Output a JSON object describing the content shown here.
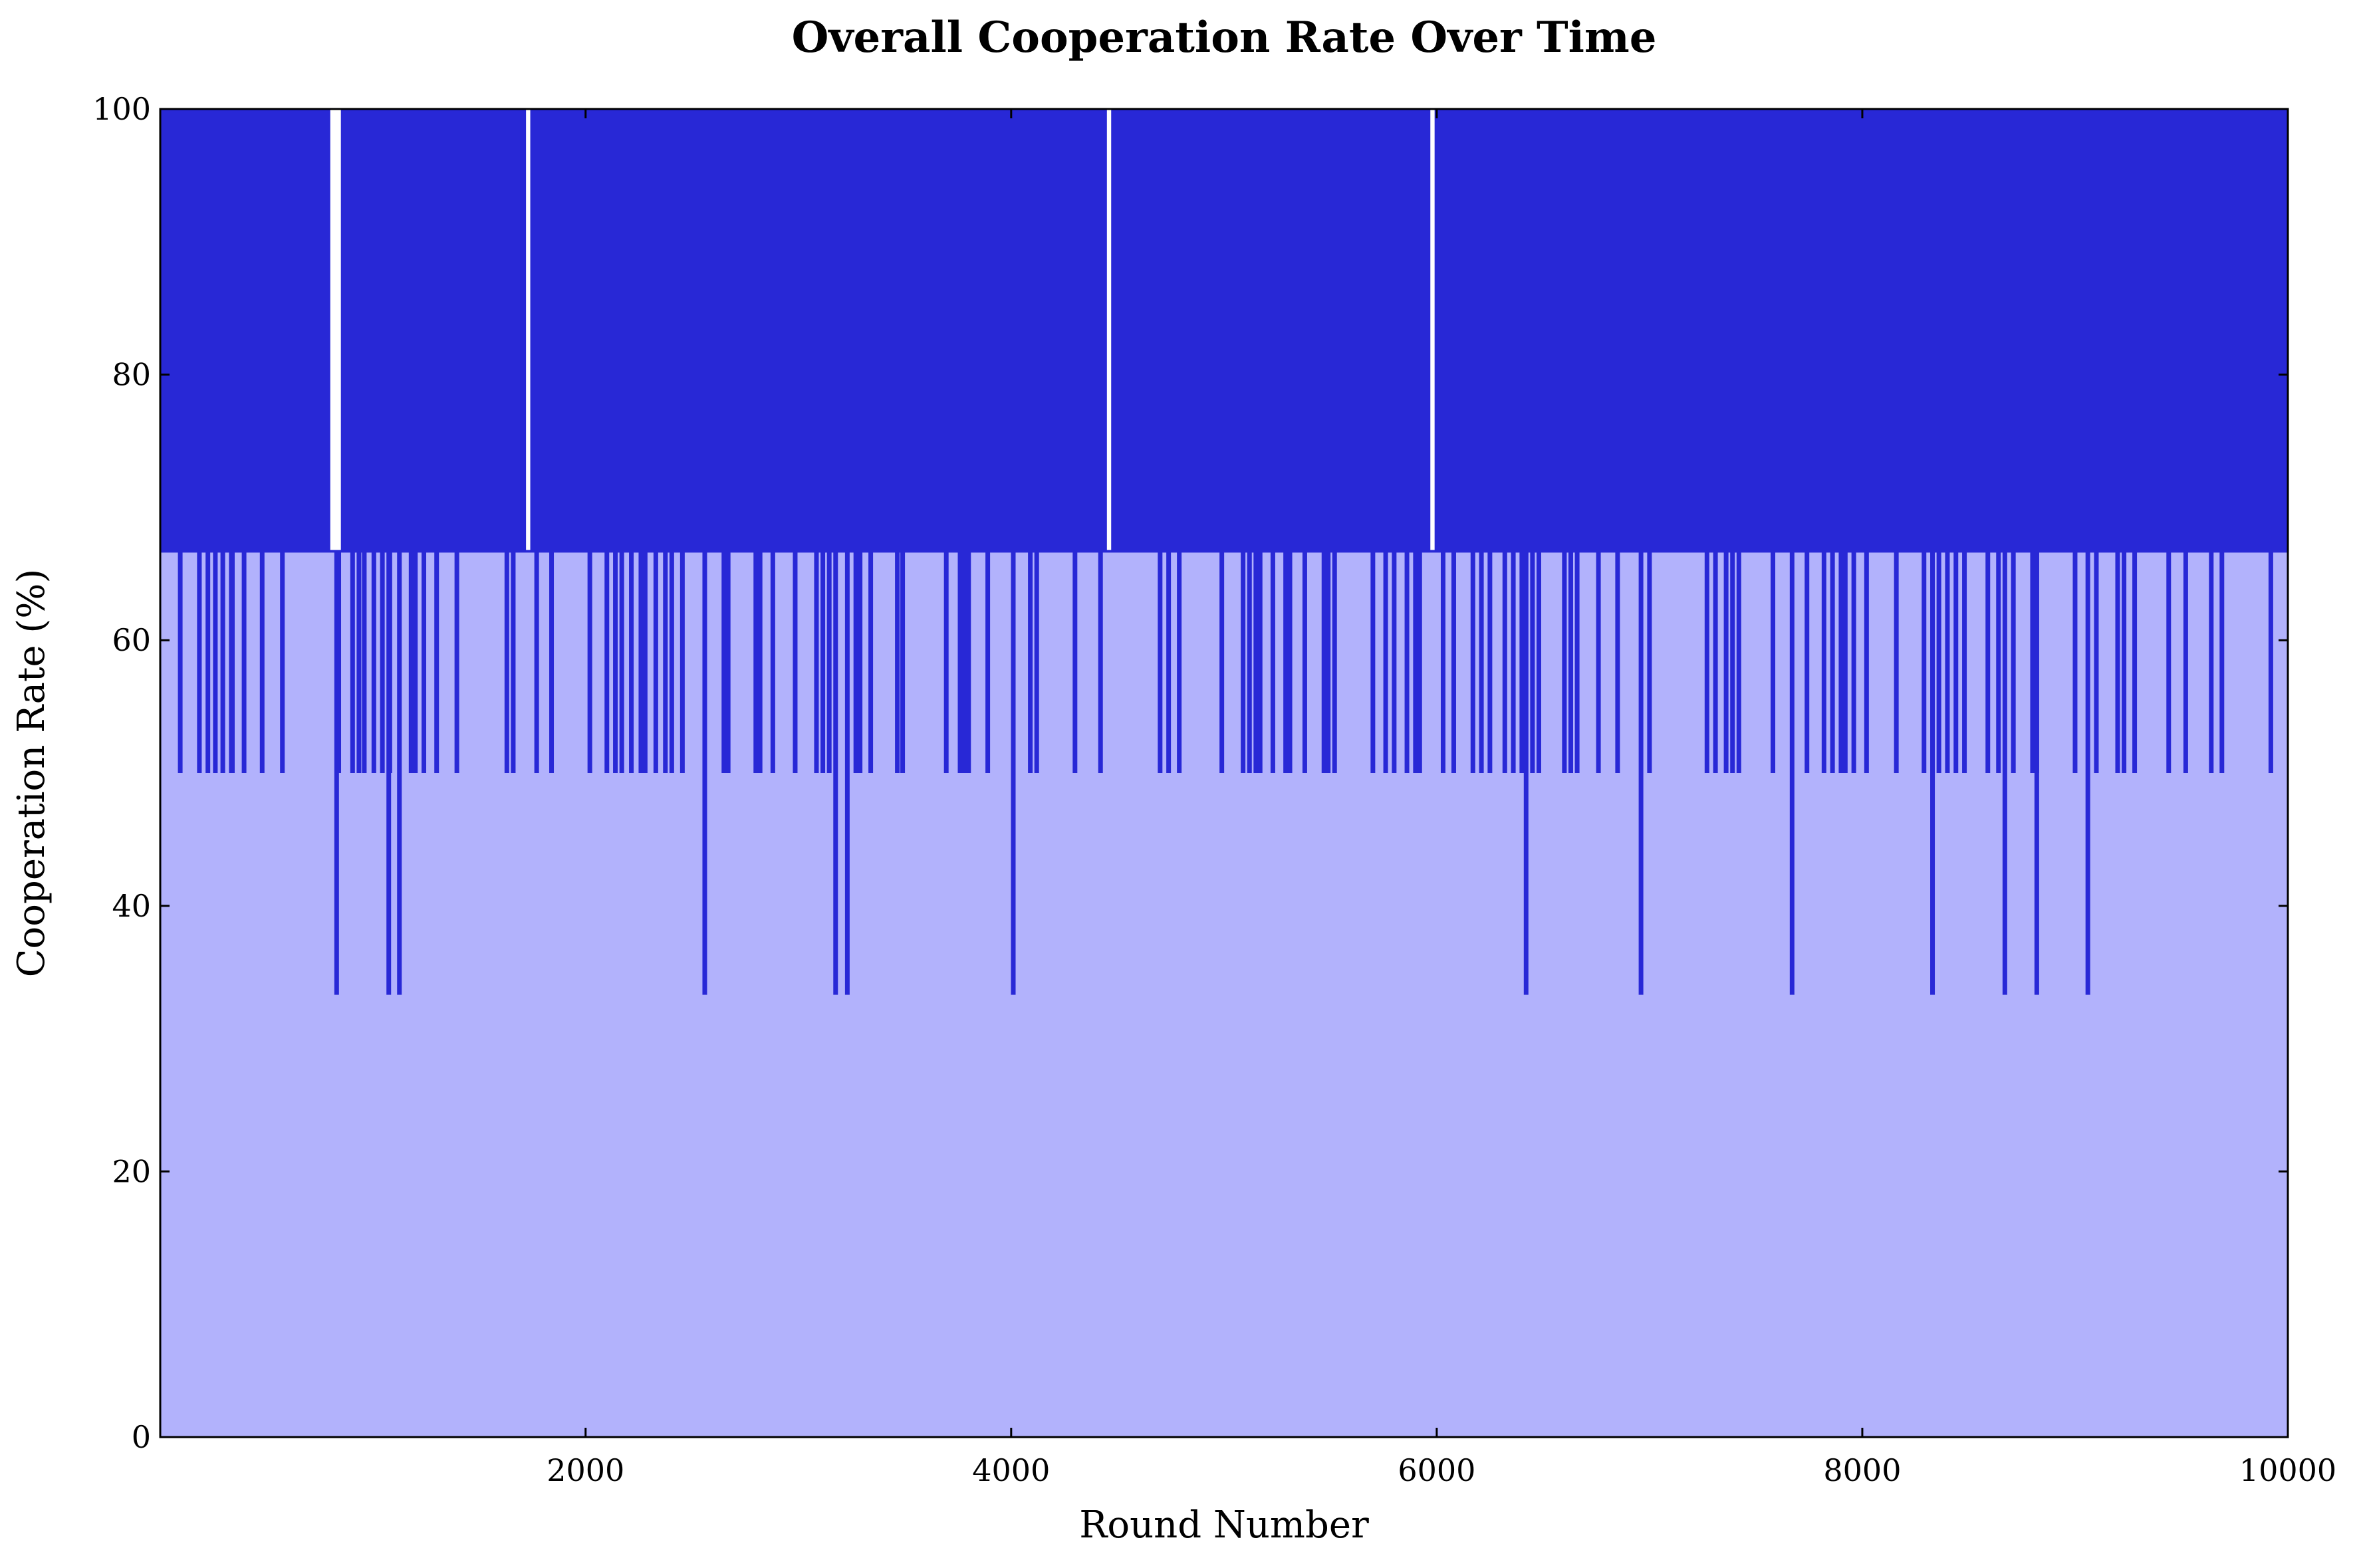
{
  "chart_data": {
    "type": "area",
    "title": "Overall Cooperation Rate Over Time",
    "xlabel": "Round Number",
    "ylabel": "Cooperation Rate (%)",
    "xlim": [
      1,
      10000
    ],
    "ylim": [
      0,
      100
    ],
    "x_ticks": [
      2000,
      4000,
      6000,
      8000,
      10000
    ],
    "x_tick_labels": [
      "2000",
      "4000",
      "6000",
      "8000",
      "10000"
    ],
    "y_ticks": [
      0,
      20,
      40,
      60,
      80,
      100
    ],
    "y_tick_labels": [
      "0",
      "20",
      "40",
      "60",
      "80",
      "100"
    ],
    "grid": false,
    "series": [
      {
        "values_description_free": true,
        "levels": [
          33.3,
          50,
          66.7,
          83.3,
          100
        ],
        "baseline": 66.7,
        "high_oscillation_range": [
          66.7,
          100
        ],
        "dips_to_50": [
          95,
          185,
          225,
          260,
          295,
          335,
          340,
          395,
          480,
          575,
          840,
          905,
          935,
          960,
          1005,
          1045,
          1080,
          1180,
          1200,
          1240,
          1300,
          1395,
          1630,
          1660,
          1770,
          1840,
          2020,
          2100,
          2140,
          2170,
          2215,
          2260,
          2280,
          2330,
          2375,
          2405,
          2455,
          2650,
          2670,
          2800,
          2820,
          2880,
          2985,
          3085,
          3115,
          3145,
          3270,
          3290,
          3340,
          3465,
          3490,
          3695,
          3760,
          3780,
          3800,
          3890,
          4090,
          4120,
          4300,
          4420,
          4700,
          4740,
          4790,
          4990,
          5090,
          5120,
          5150,
          5170,
          5230,
          5290,
          5310,
          5380,
          5470,
          5490,
          5520,
          5700,
          5760,
          5800,
          5860,
          5900,
          5920,
          6030,
          6080,
          6170,
          6210,
          6250,
          6320,
          6360,
          6400,
          6450,
          6480,
          6600,
          6630,
          6660,
          6760,
          6850,
          7000,
          7270,
          7310,
          7360,
          7390,
          7420,
          7580,
          7740,
          7820,
          7860,
          7900,
          7920,
          7960,
          8020,
          8160,
          8290,
          8360,
          8400,
          8440,
          8480,
          8590,
          8640,
          8710,
          8800,
          8820,
          9000,
          9100,
          9200,
          9230,
          9280,
          9440,
          9520,
          9640,
          9690,
          9920
        ],
        "dips_to_33": [
          830,
          1075,
          1125,
          2560,
          3175,
          3230,
          4010,
          6420,
          6960,
          7670,
          8330,
          8670,
          8820,
          9060
        ],
        "dense_oscillation_intervals": [
          [
            1,
            800
          ],
          [
            850,
            1720
          ],
          [
            1740,
            4450
          ],
          [
            4470,
            5970
          ],
          [
            5990,
            10000
          ]
        ],
        "sparse_intervals_at_66_7": [
          [
            800,
            850
          ],
          [
            4450,
            4700
          ],
          [
            5970,
            5990
          ],
          [
            7100,
            7270
          ],
          [
            8870,
            9000
          ]
        ]
      }
    ],
    "colors": {
      "line": "#2828d6",
      "fill": "#b2b2fc",
      "axis": "#000000"
    }
  }
}
